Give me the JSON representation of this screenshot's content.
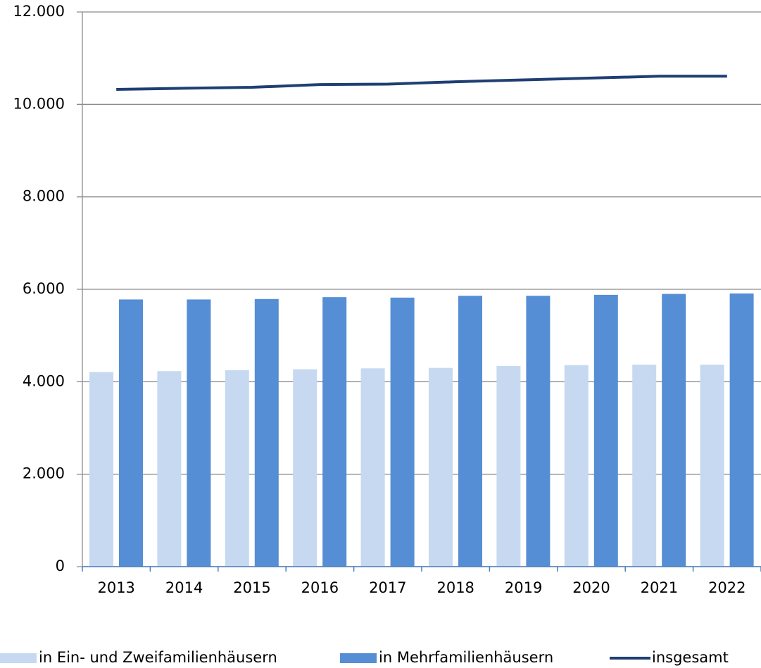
{
  "chart_data": {
    "type": "bar_line",
    "categories": [
      "2013",
      "2014",
      "2015",
      "2016",
      "2017",
      "2018",
      "2019",
      "2020",
      "2021",
      "2022"
    ],
    "series": [
      {
        "name": "in Ein- und Zweifamilienhäusern",
        "type": "bar",
        "color": "#c6d9f1",
        "values": [
          4210,
          4230,
          4250,
          4270,
          4290,
          4300,
          4340,
          4360,
          4370,
          4370
        ]
      },
      {
        "name": "in Mehrfamilienhäusern",
        "type": "bar",
        "color": "#558ed5",
        "values": [
          5780,
          5780,
          5790,
          5830,
          5820,
          5860,
          5860,
          5880,
          5900,
          5910
        ]
      },
      {
        "name": "insgesamt",
        "type": "line",
        "color": "#1f3f73",
        "values": [
          10325,
          10350,
          10370,
          10430,
          10440,
          10490,
          10530,
          10570,
          10610,
          10610
        ]
      }
    ],
    "ylim": [
      0,
      12000
    ],
    "yticks": [
      0,
      {
        "value": 2000,
        "label": "2.000"
      },
      {
        "value": 4000,
        "label": "4.000"
      },
      {
        "value": 6000,
        "label": "6.000"
      },
      {
        "value": 8000,
        "label": "8.000"
      },
      {
        "value": 10000,
        "label": "10.000"
      },
      {
        "value": 12000,
        "label": "12.000"
      }
    ],
    "grid": true,
    "legend": "bottom"
  }
}
